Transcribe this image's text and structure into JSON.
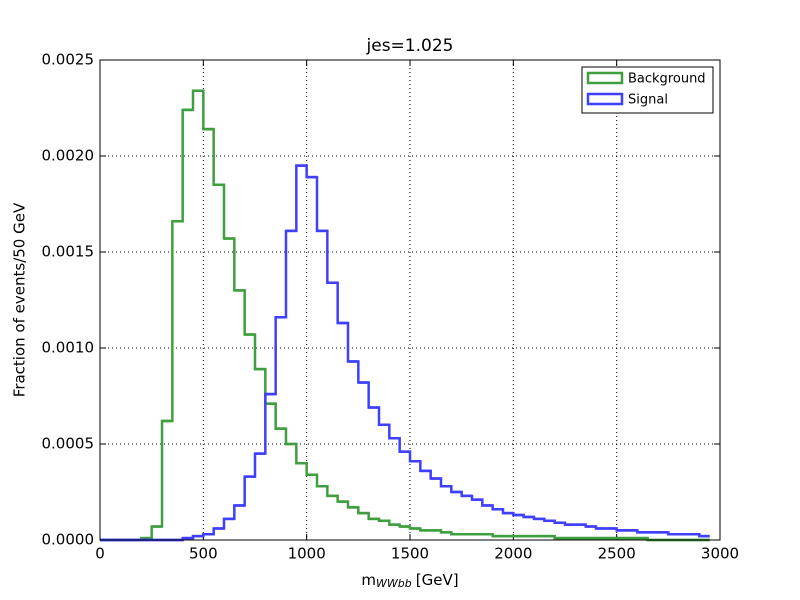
{
  "chart_data": {
    "type": "step-histogram",
    "title": "jes=1.025",
    "xlabel": {
      "base": "m",
      "subscript": "WWbb",
      "unit": "[GeV]"
    },
    "ylabel": "Fraction of events/50 GeV",
    "bins": [
      0,
      50,
      100,
      150,
      200,
      250,
      300,
      350,
      400,
      450,
      500,
      550,
      600,
      650,
      700,
      750,
      800,
      850,
      900,
      950,
      1000,
      1050,
      1100,
      1150,
      1200,
      1250,
      1300,
      1350,
      1400,
      1450,
      1500,
      1550,
      1600,
      1650,
      1700,
      1750,
      1800,
      1850,
      1900,
      1950,
      2000,
      2050,
      2100,
      2150,
      2200,
      2250,
      2300,
      2350,
      2400,
      2450,
      2500,
      2550,
      2600,
      2650,
      2700,
      2750,
      2800,
      2850,
      2900,
      2950
    ],
    "series": [
      {
        "name": "Background",
        "color": "#3f9f3f",
        "values": [
          0,
          0,
          0,
          0,
          1e-05,
          7e-05,
          0.00062,
          0.00166,
          0.00224,
          0.00234,
          0.00214,
          0.00185,
          0.00157,
          0.0013,
          0.00107,
          0.00089,
          0.00071,
          0.00058,
          0.0005,
          0.0004,
          0.00034,
          0.00028,
          0.00023,
          0.0002,
          0.00017,
          0.00014,
          0.00011,
          0.0001,
          8e-05,
          7e-05,
          6e-05,
          5e-05,
          5e-05,
          4e-05,
          3e-05,
          3e-05,
          3e-05,
          3e-05,
          2e-05,
          2e-05,
          2e-05,
          2e-05,
          2e-05,
          2e-05,
          1e-05,
          1e-05,
          1e-05,
          1e-05,
          1e-05,
          1e-05,
          1e-05,
          1e-05,
          1e-05,
          0,
          0,
          0,
          0,
          0,
          0
        ]
      },
      {
        "name": "Signal",
        "color": "#3f3fff",
        "values": [
          0,
          0,
          0,
          0,
          0,
          0,
          0,
          0,
          1e-05,
          2e-05,
          3e-05,
          6e-05,
          0.00011,
          0.00018,
          0.00033,
          0.00045,
          0.00076,
          0.00116,
          0.00161,
          0.00195,
          0.00189,
          0.00161,
          0.00134,
          0.00113,
          0.00093,
          0.00082,
          0.00069,
          0.0006,
          0.00053,
          0.00046,
          0.00041,
          0.00036,
          0.00032,
          0.00028,
          0.00025,
          0.00023,
          0.00021,
          0.00018,
          0.00016,
          0.00014,
          0.00013,
          0.00012,
          0.00011,
          0.0001,
          9e-05,
          8e-05,
          8e-05,
          7e-05,
          6e-05,
          6e-05,
          5e-05,
          5e-05,
          4e-05,
          4e-05,
          4e-05,
          3e-05,
          3e-05,
          3e-05,
          2e-05
        ]
      }
    ],
    "xlim": [
      0,
      3000
    ],
    "xticks": [
      0,
      500,
      1000,
      1500,
      2000,
      2500,
      3000
    ],
    "ylim": [
      0,
      0.0025
    ],
    "yticks": [
      {
        "value": 0,
        "label": "0.0000"
      },
      {
        "value": 0.0005,
        "label": "0.0005"
      },
      {
        "value": 0.001,
        "label": "0.0010"
      },
      {
        "value": 0.0015,
        "label": "0.0015"
      },
      {
        "value": 0.002,
        "label": "0.0020"
      },
      {
        "value": 0.0025,
        "label": "0.0025"
      }
    ],
    "grid": true,
    "legend": "upper right"
  }
}
